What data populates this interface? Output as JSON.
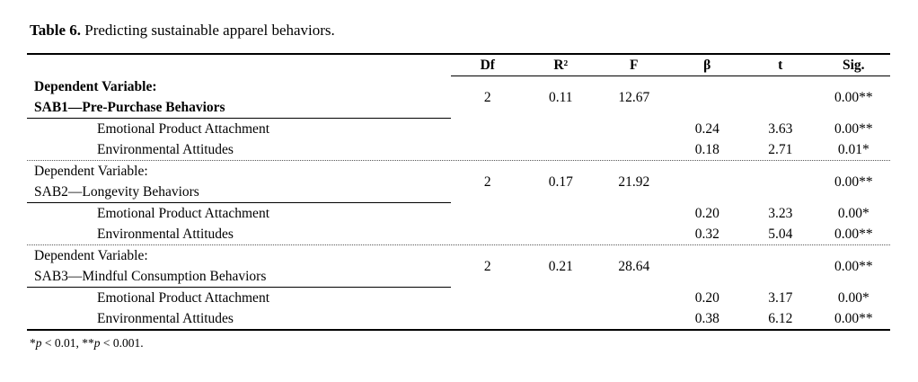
{
  "title": {
    "label": "Table 6.",
    "text": " Predicting sustainable apparel behaviors."
  },
  "table": {
    "columns": [
      "Df",
      "R²",
      "F",
      "β",
      "t",
      "Sig."
    ],
    "sections": [
      {
        "header_line1": "Dependent Variable:",
        "header_line2": "SAB1—Pre-Purchase Behaviors",
        "stats": {
          "df": "2",
          "r2": "0.11",
          "f": "12.67",
          "sig": "0.00**"
        },
        "predictors": [
          {
            "name": "Emotional Product Attachment",
            "beta": "0.24",
            "t": "3.63",
            "sig": "0.00**"
          },
          {
            "name": "Environmental Attitudes",
            "beta": "0.18",
            "t": "2.71",
            "sig": "0.01*"
          }
        ]
      },
      {
        "header_line1": "Dependent Variable:",
        "header_line2": "SAB2—Longevity Behaviors",
        "stats": {
          "df": "2",
          "r2": "0.17",
          "f": "21.92",
          "sig": "0.00**"
        },
        "predictors": [
          {
            "name": "Emotional Product Attachment",
            "beta": "0.20",
            "t": "3.23",
            "sig": "0.00*"
          },
          {
            "name": "Environmental Attitudes",
            "beta": "0.32",
            "t": "5.04",
            "sig": "0.00**"
          }
        ]
      },
      {
        "header_line1": "Dependent Variable:",
        "header_line2": "SAB3—Mindful Consumption Behaviors",
        "stats": {
          "df": "2",
          "r2": "0.21",
          "f": "28.64",
          "sig": "0.00**"
        },
        "predictors": [
          {
            "name": "Emotional Product Attachment",
            "beta": "0.20",
            "t": "3.17",
            "sig": "0.00*"
          },
          {
            "name": "Environmental Attitudes",
            "beta": "0.38",
            "t": "6.12",
            "sig": "0.00**"
          }
        ]
      }
    ]
  },
  "footnote": {
    "star1": "*",
    "p1": "p",
    "seg1": " < 0.01, ",
    "star2": "**",
    "p2": "p",
    "seg2": " < 0.001."
  }
}
